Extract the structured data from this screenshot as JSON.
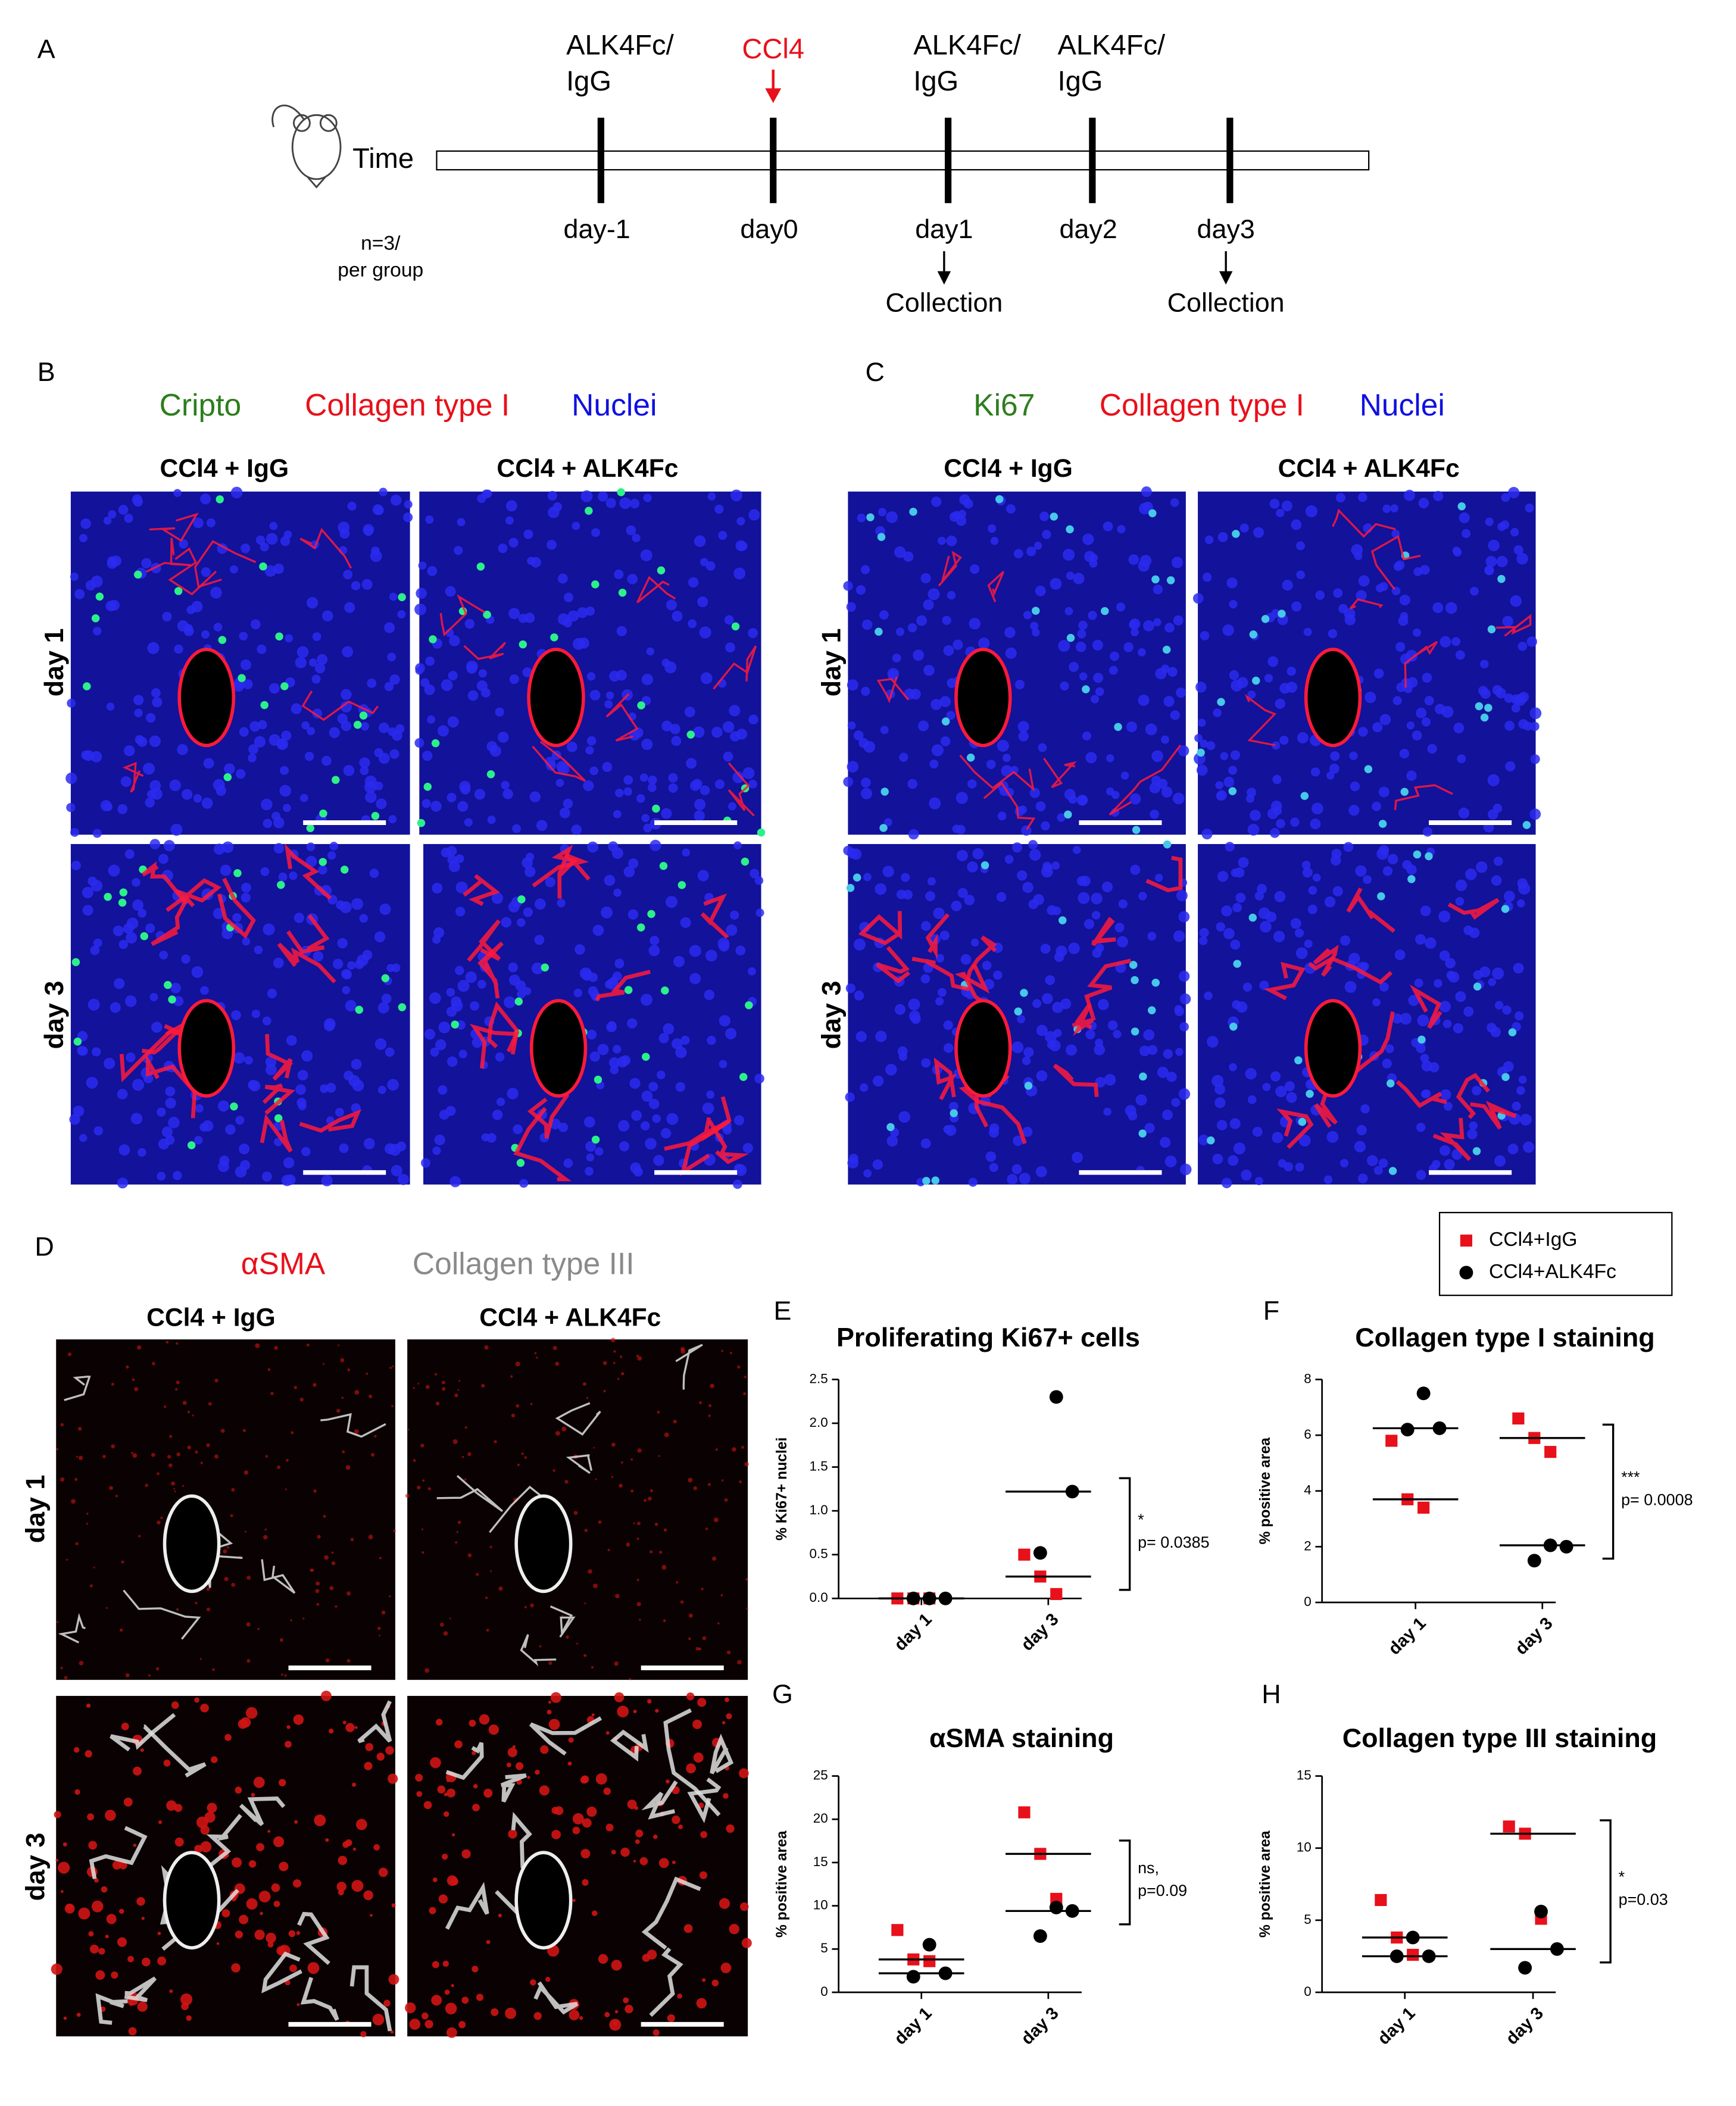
{
  "timeline": {
    "panel_label": "A",
    "time_label": "Time",
    "sample_size": [
      "n=3/",
      "per group"
    ],
    "events": [
      {
        "above": [
          "ALK4Fc/",
          "IgG"
        ],
        "day": "day-1"
      },
      {
        "above": [
          "CCl4"
        ],
        "color": "#e8101a",
        "day": "day0"
      },
      {
        "above": [
          "ALK4Fc/",
          "IgG"
        ],
        "day": "day1",
        "below": "Collection"
      },
      {
        "above": [
          "ALK4Fc/",
          "IgG"
        ],
        "day": "day2"
      },
      {
        "day": "day3",
        "below": "Collection"
      }
    ]
  },
  "image_panels": [
    {
      "label": "B",
      "stains": [
        {
          "text": "Cripto",
          "color": "#2e7d1e"
        },
        {
          "text": "Collagen type I",
          "color": "#e8101a"
        },
        {
          "text": "Nuclei",
          "color": "#1010e0"
        }
      ],
      "columns": [
        "CCl4 + IgG",
        "CCl4 + ALK4Fc"
      ],
      "rows": [
        "day 1",
        "day 3"
      ]
    },
    {
      "label": "C",
      "stains": [
        {
          "text": "Ki67",
          "color": "#2e7d1e"
        },
        {
          "text": "Collagen type I",
          "color": "#e8101a"
        },
        {
          "text": "Nuclei",
          "color": "#1010e0"
        }
      ],
      "columns": [
        "CCl4 + IgG",
        "CCl4 + ALK4Fc"
      ],
      "rows": [
        "day 1",
        "day 3"
      ]
    },
    {
      "label": "D",
      "stains": [
        {
          "text": "αSMA",
          "color": "#e8101a"
        },
        {
          "text": "Collagen type III",
          "color": "#8a8a8a"
        }
      ],
      "columns": [
        "CCl4 + IgG",
        "CCl4 + ALK4Fc"
      ],
      "rows": [
        "day 1",
        "day 3"
      ]
    }
  ],
  "legend": [
    {
      "name": "CCl4+IgG",
      "color": "#e8101a",
      "marker": "square"
    },
    {
      "name": "CCl4+ALK4Fc",
      "color": "#000000",
      "marker": "circle"
    }
  ],
  "chart_data": [
    {
      "type": "dot",
      "label": "E",
      "title": "Proliferating Ki67+ cells",
      "y_label": "% Ki67+ nuclei",
      "categories": [
        "day 1",
        "day 3"
      ],
      "series": [
        {
          "color": "#e8101a",
          "marker": "square",
          "values": [
            [
              0,
              0,
              0
            ],
            [
              0.5,
              0.25,
              0.05
            ]
          ],
          "medians": [
            0,
            0.25
          ]
        },
        {
          "color": "#000000",
          "marker": "circle",
          "values": [
            [
              0,
              0,
              0
            ],
            [
              2.3,
              1.22,
              0.52
            ]
          ],
          "medians": [
            0,
            1.22
          ]
        }
      ],
      "ylim": [
        0,
        2.5
      ],
      "yticks": [
        {
          "value": 0,
          "label": "0.0"
        },
        0.5,
        {
          "value": 1,
          "label": "1.0"
        },
        1.5,
        {
          "value": 2,
          "label": "2.0"
        },
        2.5
      ],
      "annotation": [
        "*",
        "p= 0.0385"
      ]
    },
    {
      "type": "dot",
      "label": "F",
      "title": "Collagen type I staining",
      "y_label": "% positive area",
      "categories": [
        "day 1",
        "day 3"
      ],
      "series": [
        {
          "color": "#e8101a",
          "marker": "square",
          "values": [
            [
              5.8,
              3.7,
              3.4
            ],
            [
              6.6,
              5.9,
              5.4
            ]
          ],
          "medians": [
            3.7,
            5.9
          ]
        },
        {
          "color": "#000000",
          "marker": "circle",
          "values": [
            [
              7.5,
              6.25,
              6.2
            ],
            [
              2.05,
              2.0,
              1.5
            ]
          ],
          "medians": [
            6.25,
            2.05
          ]
        }
      ],
      "ylim": [
        0,
        8
      ],
      "yticks": [
        0,
        2,
        4,
        6,
        8
      ],
      "annotation": [
        "***",
        "p= 0.0008"
      ]
    },
    {
      "type": "dot",
      "label": "G",
      "title": "αSMA staining",
      "y_label": "% positive area",
      "categories": [
        "day 1",
        "day 3"
      ],
      "series": [
        {
          "color": "#e8101a",
          "marker": "square",
          "values": [
            [
              7.2,
              3.8,
              3.6
            ],
            [
              20.8,
              16.0,
              10.8
            ]
          ],
          "medians": [
            3.8,
            16.0
          ]
        },
        {
          "color": "#000000",
          "marker": "circle",
          "values": [
            [
              5.5,
              2.2,
              1.8
            ],
            [
              9.8,
              9.4,
              6.5
            ]
          ],
          "medians": [
            2.2,
            9.4
          ]
        }
      ],
      "ylim": [
        0,
        25
      ],
      "yticks": [
        0,
        5,
        10,
        15,
        20,
        25
      ],
      "annotation": [
        "ns,",
        "p=0.09"
      ]
    },
    {
      "type": "dot",
      "label": "H",
      "title": "Collagen type III staining",
      "y_label": "% positive area",
      "categories": [
        "day 1",
        "day 3"
      ],
      "series": [
        {
          "color": "#e8101a",
          "marker": "square",
          "values": [
            [
              6.4,
              3.8,
              2.6
            ],
            [
              11.5,
              11.0,
              5.1
            ]
          ],
          "medians": [
            3.8,
            11.0
          ]
        },
        {
          "color": "#000000",
          "marker": "circle",
          "values": [
            [
              3.8,
              2.5,
              2.5
            ],
            [
              5.6,
              3.0,
              1.7
            ]
          ],
          "medians": [
            2.5,
            3.0
          ]
        }
      ],
      "ylim": [
        0,
        15
      ],
      "yticks": [
        0,
        5,
        10,
        15
      ],
      "annotation": [
        "*",
        "p=0.03"
      ]
    }
  ]
}
